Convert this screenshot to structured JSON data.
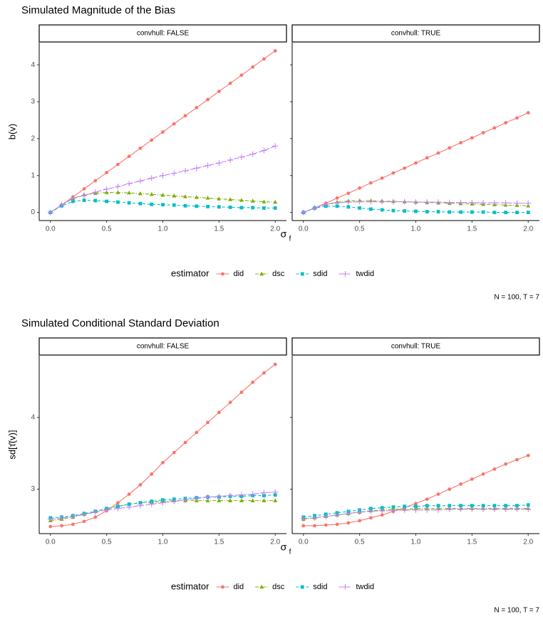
{
  "chart_data": [
    {
      "type": "line",
      "title": "Simulated Magnitude of the Bias",
      "y_label": "b(v)",
      "x_label": {
        "symbol": "σ",
        "subscript": "f"
      },
      "facets": [
        "convhull: FALSE",
        "convhull: TRUE"
      ],
      "legend_title": "estimator",
      "caption": "N = 100, T = 7",
      "x": [
        0,
        0.1,
        0.2,
        0.3,
        0.4,
        0.5,
        0.6,
        0.7,
        0.8,
        0.9,
        1.0,
        1.1,
        1.2,
        1.3,
        1.4,
        1.5,
        1.6,
        1.7,
        1.8,
        1.9,
        2.0
      ],
      "xlim": [
        -0.1,
        2.1
      ],
      "xticks": [
        {
          "value": 0,
          "label": "0.0"
        },
        {
          "value": 0.5,
          "label": "0.5"
        },
        {
          "value": 1,
          "label": "1.0"
        },
        {
          "value": 1.5,
          "label": "1.5"
        },
        {
          "value": 2,
          "label": "2.0"
        }
      ],
      "ylim": [
        -0.22,
        4.6
      ],
      "yticks": [
        0,
        1,
        2,
        3,
        4
      ],
      "series": [
        {
          "name": "did",
          "color": "#F8766D",
          "shape": "circle",
          "dash": "solid",
          "values": [
            [
              0,
              0.2,
              0.42,
              0.64,
              0.86,
              1.08,
              1.3,
              1.52,
              1.74,
              1.96,
              2.18,
              2.4,
              2.62,
              2.84,
              3.06,
              3.28,
              3.5,
              3.72,
              3.94,
              4.16,
              4.38
            ],
            [
              0,
              0.12,
              0.25,
              0.39,
              0.52,
              0.66,
              0.8,
              0.93,
              1.07,
              1.2,
              1.34,
              1.48,
              1.61,
              1.75,
              1.89,
              2.02,
              2.16,
              2.29,
              2.43,
              2.56,
              2.7
            ]
          ]
        },
        {
          "name": "dsc",
          "color": "#7CAE00",
          "shape": "triangle",
          "dash": "dotdash",
          "values": [
            [
              0,
              0.2,
              0.38,
              0.48,
              0.52,
              0.54,
              0.54,
              0.53,
              0.51,
              0.49,
              0.47,
              0.45,
              0.43,
              0.41,
              0.39,
              0.37,
              0.35,
              0.33,
              0.31,
              0.29,
              0.28
            ],
            [
              0,
              0.12,
              0.22,
              0.28,
              0.31,
              0.32,
              0.32,
              0.31,
              0.3,
              0.29,
              0.28,
              0.27,
              0.26,
              0.25,
              0.24,
              0.23,
              0.22,
              0.21,
              0.2,
              0.19,
              0.18
            ]
          ]
        },
        {
          "name": "sdid",
          "color": "#00BFC4",
          "shape": "square",
          "dash": "dashed",
          "values": [
            [
              0,
              0.18,
              0.3,
              0.33,
              0.32,
              0.3,
              0.28,
              0.26,
              0.24,
              0.22,
              0.21,
              0.2,
              0.18,
              0.17,
              0.16,
              0.15,
              0.14,
              0.13,
              0.13,
              0.12,
              0.12
            ],
            [
              0,
              0.12,
              0.17,
              0.17,
              0.15,
              0.12,
              0.09,
              0.07,
              0.05,
              0.04,
              0.03,
              0.02,
              0.02,
              0.01,
              0.01,
              0.01,
              0.01,
              0,
              0,
              0,
              0
            ]
          ]
        },
        {
          "name": "twdid",
          "color": "#C77CFF",
          "shape": "plus",
          "dash": "longdash",
          "values": [
            [
              0,
              0.2,
              0.38,
              0.46,
              0.55,
              0.63,
              0.7,
              0.78,
              0.85,
              0.93,
              1.0,
              1.06,
              1.13,
              1.2,
              1.27,
              1.34,
              1.42,
              1.5,
              1.58,
              1.68,
              1.8
            ],
            [
              0,
              0.12,
              0.22,
              0.26,
              0.28,
              0.29,
              0.29,
              0.29,
              0.29,
              0.29,
              0.28,
              0.28,
              0.28,
              0.27,
              0.27,
              0.27,
              0.26,
              0.26,
              0.26,
              0.25,
              0.25
            ]
          ]
        }
      ]
    },
    {
      "type": "line",
      "title": "Simulated Conditional Standard Deviation",
      "y_label": "sd[τ̂(v)]",
      "x_label": {
        "symbol": "σ",
        "subscript": "f"
      },
      "facets": [
        "convhull: FALSE",
        "convhull: TRUE"
      ],
      "legend_title": "estimator",
      "caption": "N = 100, T = 7",
      "x": [
        0,
        0.1,
        0.2,
        0.3,
        0.4,
        0.5,
        0.6,
        0.7,
        0.8,
        0.9,
        1.0,
        1.1,
        1.2,
        1.3,
        1.4,
        1.5,
        1.6,
        1.7,
        1.8,
        1.9,
        2.0
      ],
      "xlim": [
        -0.1,
        2.1
      ],
      "xticks": [
        {
          "value": 0,
          "label": "0.0"
        },
        {
          "value": 0.5,
          "label": "0.5"
        },
        {
          "value": 1,
          "label": "1.0"
        },
        {
          "value": 1.5,
          "label": "1.5"
        },
        {
          "value": 2,
          "label": "2.0"
        }
      ],
      "ylim": [
        2.38,
        4.86
      ],
      "yticks": [
        3,
        4
      ],
      "series": [
        {
          "name": "did",
          "color": "#F8766D",
          "shape": "circle",
          "dash": "solid",
          "values": [
            [
              2.48,
              2.49,
              2.51,
              2.55,
              2.61,
              2.7,
              2.81,
              2.93,
              3.06,
              3.21,
              3.37,
              3.51,
              3.65,
              3.79,
              3.93,
              4.07,
              4.21,
              4.35,
              4.49,
              4.62,
              4.74
            ],
            [
              2.49,
              2.49,
              2.5,
              2.51,
              2.53,
              2.56,
              2.6,
              2.64,
              2.69,
              2.74,
              2.8,
              2.86,
              2.93,
              3.0,
              3.07,
              3.14,
              3.21,
              3.28,
              3.35,
              3.41,
              3.47
            ]
          ]
        },
        {
          "name": "dsc",
          "color": "#7CAE00",
          "shape": "triangle",
          "dash": "dotdash",
          "values": [
            [
              2.56,
              2.58,
              2.61,
              2.65,
              2.69,
              2.73,
              2.76,
              2.79,
              2.81,
              2.82,
              2.83,
              2.84,
              2.84,
              2.84,
              2.84,
              2.84,
              2.84,
              2.84,
              2.84,
              2.84,
              2.84
            ],
            [
              2.58,
              2.6,
              2.62,
              2.64,
              2.66,
              2.68,
              2.7,
              2.71,
              2.72,
              2.72,
              2.73,
              2.73,
              2.73,
              2.73,
              2.73,
              2.73,
              2.73,
              2.73,
              2.73,
              2.73,
              2.73
            ]
          ]
        },
        {
          "name": "sdid",
          "color": "#00BFC4",
          "shape": "square",
          "dash": "dashed",
          "values": [
            [
              2.6,
              2.61,
              2.63,
              2.66,
              2.69,
              2.73,
              2.76,
              2.79,
              2.81,
              2.83,
              2.85,
              2.86,
              2.87,
              2.88,
              2.89,
              2.89,
              2.9,
              2.9,
              2.91,
              2.91,
              2.92
            ],
            [
              2.61,
              2.63,
              2.65,
              2.67,
              2.69,
              2.71,
              2.73,
              2.74,
              2.75,
              2.76,
              2.76,
              2.77,
              2.77,
              2.77,
              2.77,
              2.77,
              2.77,
              2.77,
              2.77,
              2.77,
              2.78
            ]
          ]
        },
        {
          "name": "twdid",
          "color": "#C77CFF",
          "shape": "plus",
          "dash": "longdash",
          "values": [
            [
              2.58,
              2.6,
              2.62,
              2.65,
              2.68,
              2.71,
              2.73,
              2.75,
              2.77,
              2.79,
              2.81,
              2.83,
              2.85,
              2.87,
              2.89,
              2.9,
              2.91,
              2.92,
              2.93,
              2.95,
              2.96
            ],
            [
              2.59,
              2.6,
              2.62,
              2.64,
              2.66,
              2.68,
              2.69,
              2.7,
              2.7,
              2.71,
              2.71,
              2.71,
              2.71,
              2.72,
              2.72,
              2.72,
              2.72,
              2.72,
              2.72,
              2.72,
              2.72
            ]
          ]
        }
      ]
    }
  ]
}
